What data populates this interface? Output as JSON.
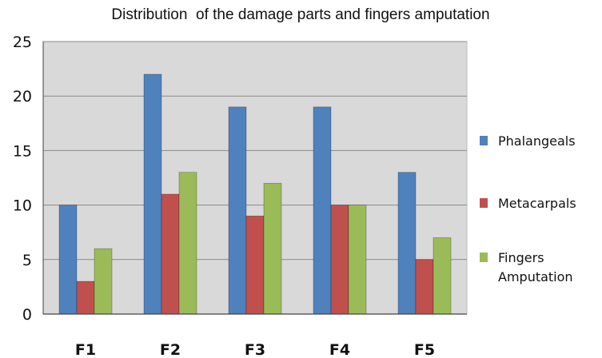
{
  "chart_data": {
    "type": "bar",
    "title": "Distribution  of the damage parts and fingers amputation",
    "categories": [
      "F1",
      "F2",
      "F3",
      "F4",
      "F5"
    ],
    "series": [
      {
        "name": "Phalangeals",
        "values": [
          10,
          22,
          19,
          19,
          13
        ],
        "color": "#4F81BD"
      },
      {
        "name": "Metacarpals",
        "values": [
          3,
          11,
          9,
          10,
          5
        ],
        "color": "#C0504D"
      },
      {
        "name": [
          "Fingers",
          "Amputation"
        ],
        "values": [
          6,
          13,
          12,
          10,
          7
        ],
        "color": "#9BBB59"
      }
    ],
    "ylim": [
      0,
      25
    ],
    "yticks": [
      0,
      5,
      10,
      15,
      20,
      25
    ],
    "grid": true,
    "legend": "right",
    "plot_background": "#D9D9D9"
  }
}
